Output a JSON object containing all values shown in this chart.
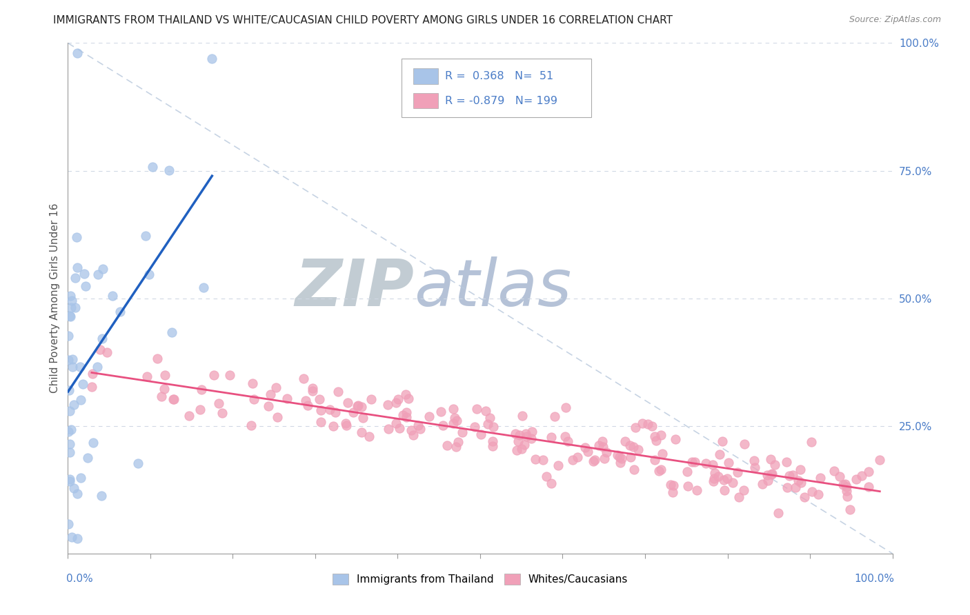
{
  "title": "IMMIGRANTS FROM THAILAND VS WHITE/CAUCASIAN CHILD POVERTY AMONG GIRLS UNDER 16 CORRELATION CHART",
  "source": "Source: ZipAtlas.com",
  "ylabel": "Child Poverty Among Girls Under 16",
  "legend_label1": "Immigrants from Thailand",
  "legend_label2": "Whites/Caucasians",
  "r1": 0.368,
  "n1": 51,
  "r2": -0.879,
  "n2": 199,
  "color_blue": "#a8c4e8",
  "color_pink": "#f0a0b8",
  "color_line_blue": "#2060c0",
  "color_line_pink": "#e85080",
  "color_text_blue": "#4a7cc7",
  "watermark_zip_color": "#c0c8d0",
  "watermark_atlas_color": "#b0c0d8",
  "background": "#ffffff",
  "title_fontsize": 11,
  "axis_color": "#999999",
  "grid_color": "#d0d8e4",
  "seed": 42
}
